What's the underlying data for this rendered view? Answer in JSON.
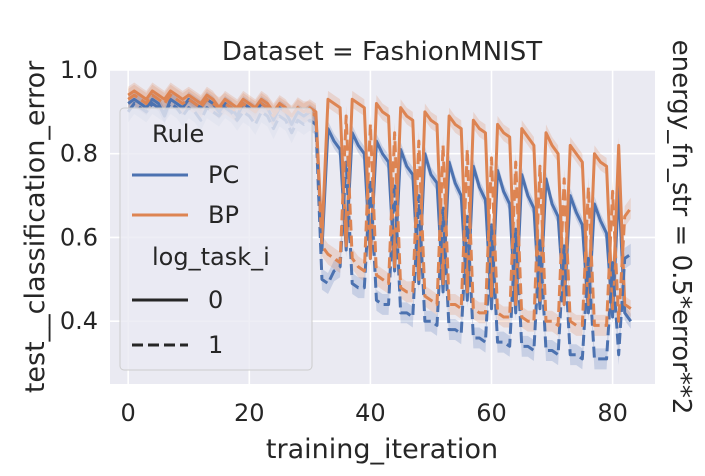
{
  "chart_data": {
    "type": "line",
    "title": "Dataset = FashionMNIST",
    "xlabel": "training_iteration",
    "ylabel": "test__classification_error",
    "row_label": "energy_fn_str = 0.5*error**2",
    "xlim": [
      -3,
      87
    ],
    "ylim": [
      0.25,
      1.0
    ],
    "x_ticks": [
      0,
      20,
      40,
      60,
      80
    ],
    "y_ticks": [
      0.4,
      0.6,
      0.8,
      1.0
    ],
    "x_tick_labels": [
      "0",
      "20",
      "40",
      "60",
      "80"
    ],
    "y_tick_labels": [
      "0.4",
      "0.6",
      "0.8",
      "1.0"
    ],
    "grid": true,
    "legend": {
      "placement": "left",
      "hue_title": "Rule",
      "hue_entries": [
        "PC",
        "BP"
      ],
      "style_title": "log_task_i",
      "style_entries": [
        "0",
        "1"
      ]
    },
    "series": [
      {
        "name": "PC",
        "style": "0",
        "color": "#4c72b0",
        "dash": "solid",
        "band": 0.018,
        "values": [
          0.92,
          0.93,
          0.92,
          0.91,
          0.93,
          0.92,
          0.89,
          0.93,
          0.92,
          0.91,
          0.93,
          0.92,
          0.91,
          0.93,
          0.92,
          0.9,
          0.92,
          0.91,
          0.89,
          0.92,
          0.91,
          0.9,
          0.92,
          0.91,
          0.88,
          0.91,
          0.9,
          0.87,
          0.9,
          0.89,
          0.9,
          0.89,
          0.57,
          0.86,
          0.83,
          0.81,
          0.57,
          0.85,
          0.82,
          0.8,
          0.55,
          0.83,
          0.8,
          0.78,
          0.52,
          0.81,
          0.77,
          0.75,
          0.49,
          0.8,
          0.75,
          0.73,
          0.47,
          0.78,
          0.73,
          0.7,
          0.45,
          0.77,
          0.72,
          0.69,
          0.43,
          0.76,
          0.71,
          0.68,
          0.42,
          0.75,
          0.7,
          0.67,
          0.43,
          0.74,
          0.68,
          0.65,
          0.44,
          0.7,
          0.66,
          0.63,
          0.42,
          0.68,
          0.64,
          0.61,
          0.41,
          0.72,
          0.42,
          0.4
        ]
      },
      {
        "name": "BP",
        "style": "0",
        "color": "#dd8452",
        "dash": "solid",
        "band": 0.02,
        "values": [
          0.94,
          0.95,
          0.94,
          0.93,
          0.95,
          0.94,
          0.93,
          0.95,
          0.94,
          0.93,
          0.94,
          0.93,
          0.92,
          0.94,
          0.93,
          0.91,
          0.93,
          0.92,
          0.91,
          0.93,
          0.92,
          0.91,
          0.93,
          0.92,
          0.9,
          0.92,
          0.91,
          0.89,
          0.91,
          0.9,
          0.91,
          0.9,
          0.6,
          0.93,
          0.92,
          0.91,
          0.58,
          0.93,
          0.92,
          0.91,
          0.55,
          0.92,
          0.9,
          0.89,
          0.53,
          0.91,
          0.89,
          0.88,
          0.5,
          0.9,
          0.88,
          0.87,
          0.49,
          0.89,
          0.87,
          0.86,
          0.47,
          0.88,
          0.86,
          0.85,
          0.46,
          0.87,
          0.85,
          0.84,
          0.44,
          0.86,
          0.84,
          0.82,
          0.45,
          0.85,
          0.82,
          0.8,
          0.44,
          0.82,
          0.8,
          0.78,
          0.44,
          0.8,
          0.78,
          0.77,
          0.43,
          0.82,
          0.44,
          0.43
        ]
      },
      {
        "name": "PC",
        "style": "1",
        "color": "#4c72b0",
        "dash": "dashed",
        "band": 0.025,
        "values": [
          0.9,
          0.92,
          0.91,
          0.9,
          0.92,
          0.91,
          0.9,
          0.92,
          0.91,
          0.89,
          0.91,
          0.9,
          0.88,
          0.91,
          0.9,
          0.89,
          0.91,
          0.9,
          0.88,
          0.9,
          0.89,
          0.87,
          0.9,
          0.89,
          0.86,
          0.89,
          0.88,
          0.85,
          0.88,
          0.87,
          0.88,
          0.87,
          0.5,
          0.49,
          0.52,
          0.53,
          0.78,
          0.49,
          0.48,
          0.48,
          0.74,
          0.45,
          0.44,
          0.44,
          0.73,
          0.42,
          0.42,
          0.41,
          0.7,
          0.4,
          0.4,
          0.39,
          0.67,
          0.38,
          0.38,
          0.37,
          0.65,
          0.36,
          0.36,
          0.35,
          0.63,
          0.35,
          0.35,
          0.34,
          0.62,
          0.34,
          0.34,
          0.33,
          0.6,
          0.33,
          0.33,
          0.32,
          0.58,
          0.32,
          0.32,
          0.31,
          0.55,
          0.31,
          0.31,
          0.31,
          0.54,
          0.32,
          0.55,
          0.56
        ]
      },
      {
        "name": "BP",
        "style": "1",
        "color": "#dd8452",
        "dash": "dashed",
        "band": 0.025,
        "values": [
          0.93,
          0.94,
          0.93,
          0.92,
          0.94,
          0.93,
          0.92,
          0.94,
          0.93,
          0.92,
          0.93,
          0.92,
          0.91,
          0.93,
          0.92,
          0.91,
          0.92,
          0.91,
          0.9,
          0.92,
          0.91,
          0.9,
          0.92,
          0.91,
          0.89,
          0.91,
          0.9,
          0.89,
          0.91,
          0.9,
          0.9,
          0.89,
          0.58,
          0.56,
          0.55,
          0.54,
          0.89,
          0.55,
          0.53,
          0.52,
          0.87,
          0.51,
          0.5,
          0.49,
          0.85,
          0.48,
          0.47,
          0.47,
          0.83,
          0.46,
          0.45,
          0.44,
          0.82,
          0.44,
          0.44,
          0.43,
          0.81,
          0.43,
          0.42,
          0.42,
          0.79,
          0.42,
          0.41,
          0.41,
          0.78,
          0.41,
          0.4,
          0.4,
          0.77,
          0.4,
          0.4,
          0.39,
          0.74,
          0.4,
          0.39,
          0.39,
          0.72,
          0.39,
          0.39,
          0.39,
          0.71,
          0.4,
          0.65,
          0.67
        ]
      }
    ]
  }
}
